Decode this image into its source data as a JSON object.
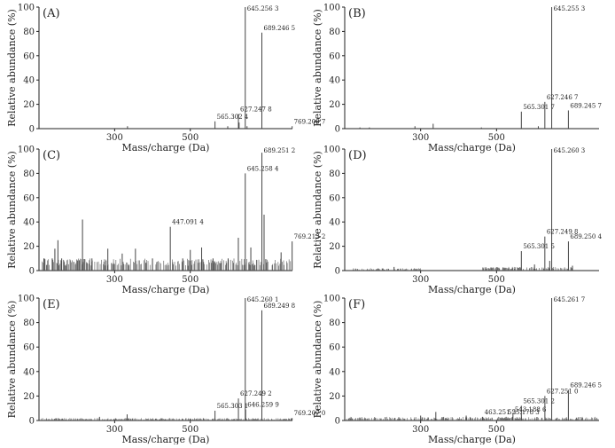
{
  "chart_data": [
    {
      "type": "bar",
      "panel_label": "(A)",
      "xlabel": "Mass/charge (Da)",
      "ylabel": "Relative abundance (%)",
      "xlim": [
        100,
        770
      ],
      "ylim": [
        0,
        100
      ],
      "x_ticks": [
        300,
        500
      ],
      "y_ticks": [
        0,
        20,
        40,
        60,
        80,
        100
      ],
      "peaks": [
        {
          "mz": 334.0,
          "intensity": 2
        },
        {
          "mz": 565.3,
          "intensity": 6
        },
        {
          "mz": 599.0,
          "intensity": 2
        },
        {
          "mz": 627.2,
          "intensity": 12
        },
        {
          "mz": 629.0,
          "intensity": 5
        },
        {
          "mz": 645.3,
          "intensity": 100
        },
        {
          "mz": 650.0,
          "intensity": 2
        },
        {
          "mz": 689.2,
          "intensity": 79
        },
        {
          "mz": 769.2,
          "intensity": 2
        }
      ],
      "annotations": [
        {
          "mz": 565.3,
          "intensity": 6,
          "text": "565.302 4"
        },
        {
          "mz": 627.2,
          "intensity": 12,
          "text": "627.247 8"
        },
        {
          "mz": 645.3,
          "intensity": 100,
          "text": "645.256 3"
        },
        {
          "mz": 689.2,
          "intensity": 79,
          "text": "689.246 5"
        },
        {
          "mz": 769.2,
          "intensity": 2,
          "text": "769.208 7"
        }
      ]
    },
    {
      "type": "bar",
      "panel_label": "(B)",
      "xlabel": "Mass/charge (Da)",
      "ylabel": "Relative abundance (%)",
      "xlim": [
        100,
        770
      ],
      "ylim": [
        0,
        100
      ],
      "x_ticks": [
        300,
        500
      ],
      "y_ticks": [
        0,
        20,
        40,
        60,
        80,
        100
      ],
      "peaks": [
        {
          "mz": 140.0,
          "intensity": 1
        },
        {
          "mz": 165.0,
          "intensity": 1
        },
        {
          "mz": 285.0,
          "intensity": 2
        },
        {
          "mz": 333.0,
          "intensity": 4
        },
        {
          "mz": 460.0,
          "intensity": 1
        },
        {
          "mz": 565.3,
          "intensity": 14
        },
        {
          "mz": 610.0,
          "intensity": 2
        },
        {
          "mz": 627.2,
          "intensity": 22
        },
        {
          "mz": 645.3,
          "intensity": 100
        },
        {
          "mz": 689.2,
          "intensity": 15
        }
      ],
      "annotations": [
        {
          "mz": 565.3,
          "intensity": 14,
          "text": "565.301 7"
        },
        {
          "mz": 627.2,
          "intensity": 22,
          "text": "627.246 7"
        },
        {
          "mz": 645.3,
          "intensity": 100,
          "text": "645.255 3"
        },
        {
          "mz": 689.2,
          "intensity": 15,
          "text": "689.245 7"
        }
      ]
    },
    {
      "type": "bar",
      "panel_label": "(C)",
      "xlabel": "Mass/charge (Da)",
      "ylabel": "Relative abundance (%)",
      "xlim": [
        100,
        770
      ],
      "ylim": [
        0,
        100
      ],
      "x_ticks": [
        300,
        500
      ],
      "y_ticks": [
        0,
        20,
        40,
        60,
        80,
        100
      ],
      "peaks": [
        {
          "mz": 113.0,
          "intensity": 10
        },
        {
          "mz": 135.0,
          "intensity": 10
        },
        {
          "mz": 142.0,
          "intensity": 18
        },
        {
          "mz": 150.0,
          "intensity": 25
        },
        {
          "mz": 160.0,
          "intensity": 10
        },
        {
          "mz": 215.0,
          "intensity": 42
        },
        {
          "mz": 240.0,
          "intensity": 10
        },
        {
          "mz": 282.0,
          "intensity": 18
        },
        {
          "mz": 320.0,
          "intensity": 14
        },
        {
          "mz": 355.0,
          "intensity": 18
        },
        {
          "mz": 400.0,
          "intensity": 10
        },
        {
          "mz": 447.1,
          "intensity": 36
        },
        {
          "mz": 480.0,
          "intensity": 10
        },
        {
          "mz": 500.0,
          "intensity": 17
        },
        {
          "mz": 530.0,
          "intensity": 19
        },
        {
          "mz": 560.0,
          "intensity": 10
        },
        {
          "mz": 600.0,
          "intensity": 10
        },
        {
          "mz": 627.0,
          "intensity": 27
        },
        {
          "mz": 645.3,
          "intensity": 80
        },
        {
          "mz": 660.0,
          "intensity": 19
        },
        {
          "mz": 689.3,
          "intensity": 97
        },
        {
          "mz": 695.0,
          "intensity": 46
        },
        {
          "mz": 740.0,
          "intensity": 15
        },
        {
          "mz": 769.2,
          "intensity": 24
        }
      ],
      "noise": {
        "from": 105,
        "to": 770,
        "level": 10
      },
      "annotations": [
        {
          "mz": 447.1,
          "intensity": 36,
          "text": "447.091 4"
        },
        {
          "mz": 645.3,
          "intensity": 80,
          "text": "645.258 4"
        },
        {
          "mz": 689.3,
          "intensity": 97,
          "text": "689.251 2"
        },
        {
          "mz": 769.2,
          "intensity": 24,
          "text": "769.213 2"
        }
      ]
    },
    {
      "type": "bar",
      "panel_label": "(D)",
      "xlabel": "Mass/charge (Da)",
      "ylabel": "Relative abundance (%)",
      "xlim": [
        100,
        770
      ],
      "ylim": [
        0,
        100
      ],
      "x_ticks": [
        300,
        500
      ],
      "y_ticks": [
        0,
        20,
        40,
        60,
        80,
        100
      ],
      "peaks": [
        {
          "mz": 230.0,
          "intensity": 3
        },
        {
          "mz": 480.0,
          "intensity": 2
        },
        {
          "mz": 565.3,
          "intensity": 16
        },
        {
          "mz": 600.0,
          "intensity": 5
        },
        {
          "mz": 627.2,
          "intensity": 28
        },
        {
          "mz": 640.0,
          "intensity": 8
        },
        {
          "mz": 645.3,
          "intensity": 100
        },
        {
          "mz": 689.3,
          "intensity": 24
        },
        {
          "mz": 700.0,
          "intensity": 4
        }
      ],
      "noise": {
        "from": 120,
        "to": 300,
        "level": 2
      },
      "noise2": {
        "from": 460,
        "to": 700,
        "level": 3
      },
      "annotations": [
        {
          "mz": 565.3,
          "intensity": 16,
          "text": "565.301 5"
        },
        {
          "mz": 627.2,
          "intensity": 28,
          "text": "627.249 8"
        },
        {
          "mz": 645.3,
          "intensity": 100,
          "text": "645.260 3"
        },
        {
          "mz": 689.3,
          "intensity": 24,
          "text": "689.250 4"
        }
      ]
    },
    {
      "type": "bar",
      "panel_label": "(E)",
      "xlabel": "Mass/charge (Da)",
      "ylabel": "Relative abundance (%)",
      "xlim": [
        100,
        770
      ],
      "ylim": [
        0,
        100
      ],
      "x_ticks": [
        300,
        500
      ],
      "y_ticks": [
        0,
        20,
        40,
        60,
        80,
        100
      ],
      "peaks": [
        {
          "mz": 260.0,
          "intensity": 3
        },
        {
          "mz": 333.0,
          "intensity": 5
        },
        {
          "mz": 565.3,
          "intensity": 8
        },
        {
          "mz": 627.2,
          "intensity": 18
        },
        {
          "mz": 645.3,
          "intensity": 100
        },
        {
          "mz": 646.3,
          "intensity": 9
        },
        {
          "mz": 689.2,
          "intensity": 90
        },
        {
          "mz": 769.2,
          "intensity": 2
        }
      ],
      "noise": {
        "from": 105,
        "to": 770,
        "level": 2
      },
      "annotations": [
        {
          "mz": 565.3,
          "intensity": 8,
          "text": "565.303 1"
        },
        {
          "mz": 627.2,
          "intensity": 18,
          "text": "627.249 2"
        },
        {
          "mz": 645.3,
          "intensity": 100,
          "text": "645.260 1"
        },
        {
          "mz": 646.3,
          "intensity": 9,
          "text": "646.259 9"
        },
        {
          "mz": 689.2,
          "intensity": 90,
          "text": "689.249 8"
        },
        {
          "mz": 769.2,
          "intensity": 2,
          "text": "769.207 0"
        }
      ]
    },
    {
      "type": "bar",
      "panel_label": "(F)",
      "xlabel": "Mass/charge (Da)",
      "ylabel": "Relative abundance (%)",
      "xlim": [
        100,
        770
      ],
      "ylim": [
        0,
        100
      ],
      "x_ticks": [
        300,
        500
      ],
      "y_ticks": [
        0,
        20,
        40,
        60,
        80,
        100
      ],
      "peaks": [
        {
          "mz": 300.0,
          "intensity": 4
        },
        {
          "mz": 340.0,
          "intensity": 7
        },
        {
          "mz": 420.0,
          "intensity": 4
        },
        {
          "mz": 463.3,
          "intensity": 3
        },
        {
          "mz": 525.2,
          "intensity": 3
        },
        {
          "mz": 543.2,
          "intensity": 5
        },
        {
          "mz": 565.3,
          "intensity": 12
        },
        {
          "mz": 627.3,
          "intensity": 20
        },
        {
          "mz": 645.3,
          "intensity": 100
        },
        {
          "mz": 689.2,
          "intensity": 25
        }
      ],
      "noise": {
        "from": 105,
        "to": 770,
        "level": 3
      },
      "annotations": [
        {
          "mz": 463.3,
          "intensity": 3,
          "text": "463.251 5"
        },
        {
          "mz": 525.2,
          "intensity": 3,
          "text": "525.178 3"
        },
        {
          "mz": 543.2,
          "intensity": 5,
          "text": "543.188 6"
        },
        {
          "mz": 565.3,
          "intensity": 12,
          "text": "565.301 2"
        },
        {
          "mz": 627.3,
          "intensity": 20,
          "text": "627.251 0"
        },
        {
          "mz": 645.3,
          "intensity": 100,
          "text": "645.261 7"
        },
        {
          "mz": 689.2,
          "intensity": 25,
          "text": "689.246 5"
        }
      ]
    }
  ]
}
